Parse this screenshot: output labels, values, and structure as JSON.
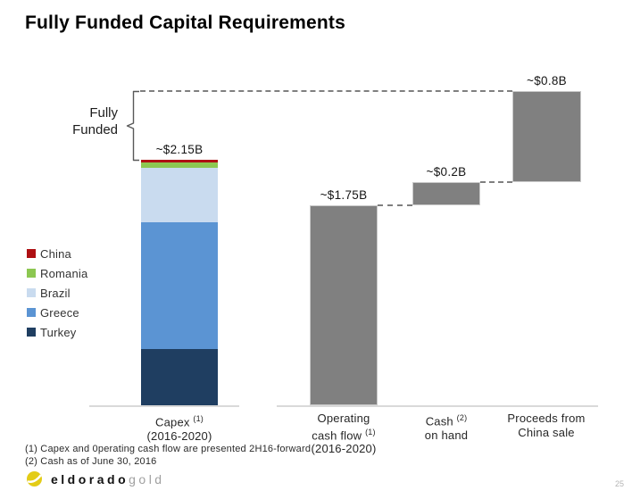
{
  "slide": {
    "title": "Fully Funded Capital Requirements",
    "page_number": "25",
    "footnotes": [
      "(1) Capex and 0perating cash flow are presented 2H16-forward",
      "(2) Cash as of June 30, 2016"
    ],
    "logo": {
      "name_primary": "eldorado",
      "name_secondary": "gold",
      "mark_color": "#e3cc17"
    }
  },
  "bracket": {
    "label_line1": "Fully",
    "label_line2": "Funded"
  },
  "chart_data": {
    "type": "bar",
    "subtype": "stacked-capex-vs-waterfall-sources",
    "title": "Fully Funded Capital Requirements",
    "unit": "US$ billions",
    "ylim": [
      0,
      2.9
    ],
    "grid": false,
    "legend_position": "left",
    "fully_funded_level": 2.75,
    "capex": {
      "category": "Capex (2016-2020)",
      "total_label": "~$2.15B",
      "total_value": 2.15,
      "segments": [
        {
          "name": "Turkey",
          "value": 0.49,
          "color": "#1f3e61"
        },
        {
          "name": "Greece",
          "value": 1.11,
          "color": "#5b94d3"
        },
        {
          "name": "Brazil",
          "value": 0.48,
          "color": "#c9dbef"
        },
        {
          "name": "Romania",
          "value": 0.045,
          "color": "#8cc751"
        },
        {
          "name": "China",
          "value": 0.025,
          "color": "#ae1013"
        }
      ]
    },
    "sources": [
      {
        "name": "Operating cash flow (2016-2020)",
        "label": "~$1.75B",
        "start": 0,
        "value": 1.75
      },
      {
        "name": "Cash on hand",
        "label": "~$0.2B",
        "start": 1.75,
        "value": 0.2
      },
      {
        "name": "Proceeds from China sale",
        "label": "~$0.8B",
        "start": 1.95,
        "value": 0.8
      }
    ],
    "legend": [
      "China",
      "Romania",
      "Brazil",
      "Greece",
      "Turkey"
    ],
    "colors": {
      "gray_bar": "#808080",
      "dashed_line": "#7f7f7f",
      "axis_line": "#d9d9d9"
    }
  },
  "axis_labels": {
    "capex": {
      "l1": "Capex",
      "sup": "(1)",
      "l2": "(2016-2020)"
    },
    "ocf": {
      "l1": "Operating",
      "l2": "cash flow",
      "sup": "(1)",
      "l3": "(2016-2020)"
    },
    "cash": {
      "l1": "Cash",
      "sup": "(2)",
      "l2": "on hand"
    },
    "proceeds": {
      "l1": "Proceeds from",
      "l2": "China sale"
    }
  }
}
